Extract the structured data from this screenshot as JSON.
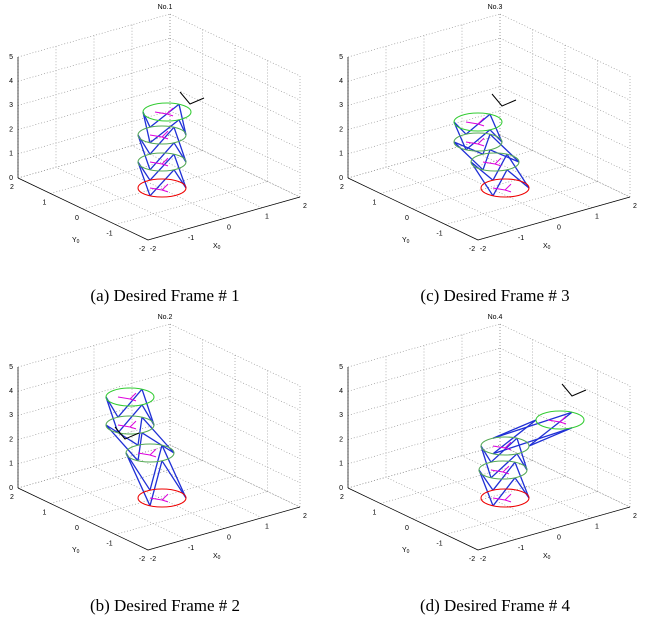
{
  "panels": [
    {
      "title": "No.1",
      "caption": "(a) Desired Frame # 1",
      "zticks": [
        0,
        1,
        2,
        3,
        4,
        5
      ],
      "xticks": [
        -2,
        -1,
        0,
        1,
        2
      ],
      "yticks": [
        -2,
        -1,
        0,
        1,
        2
      ],
      "xlabel": {
        "text": "X",
        "sub": "0"
      },
      "ylabel": {
        "text": "Y",
        "sub": "0"
      }
    },
    {
      "title": "No.3",
      "caption": "(c) Desired Frame # 3",
      "zticks": [
        0,
        1,
        2,
        3,
        4,
        5
      ],
      "xticks": [
        -2,
        -1,
        0,
        1,
        2
      ],
      "yticks": [
        -2,
        -1,
        0,
        1,
        2
      ],
      "xlabel": {
        "text": "X",
        "sub": "0"
      },
      "ylabel": {
        "text": "Y",
        "sub": "0"
      }
    },
    {
      "title": "No.2",
      "caption": "(b) Desired Frame # 2",
      "zticks": [
        0,
        1,
        2,
        3,
        4,
        5
      ],
      "xticks": [
        -2,
        -1,
        0,
        1,
        2
      ],
      "yticks": [
        -2,
        -1,
        0,
        1,
        2
      ],
      "xlabel": {
        "text": "X",
        "sub": "0"
      },
      "ylabel": {
        "text": "Y",
        "sub": "0"
      }
    },
    {
      "title": "No.4",
      "caption": "(d) Desired Frame # 4",
      "zticks": [
        0,
        1,
        2,
        3,
        4,
        5
      ],
      "xticks": [
        -2,
        -1,
        0,
        1,
        2
      ],
      "yticks": [
        -2,
        -1,
        0,
        1,
        2
      ],
      "xlabel": {
        "text": "X",
        "sub": "0"
      },
      "ylabel": {
        "text": "Y",
        "sub": "0"
      }
    }
  ]
}
